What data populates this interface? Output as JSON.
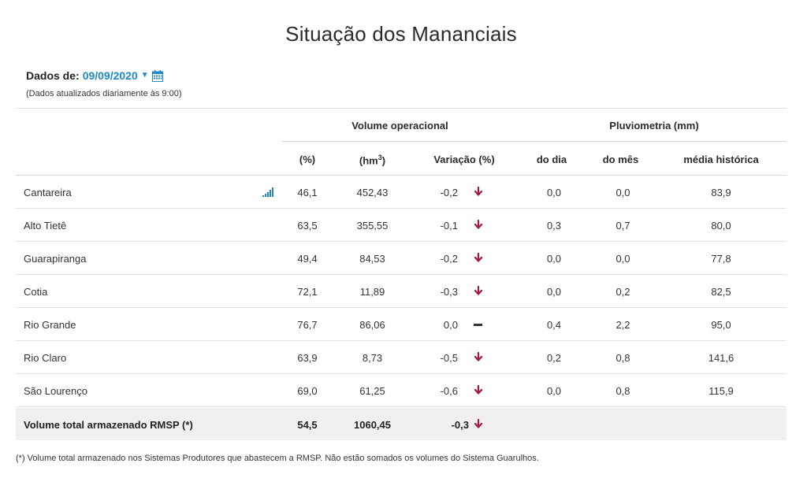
{
  "page": {
    "title": "Situação dos Mananciais"
  },
  "date_selector": {
    "label": "Dados de:",
    "value": "09/09/2020",
    "note": "(Dados atualizados diariamente às 9:00)"
  },
  "table": {
    "group_headers": {
      "volume": "Volume operacional",
      "rain": "Pluviometria (mm)"
    },
    "columns": {
      "pct": "(%)",
      "hm3": "(hm³)",
      "variation": "Variação (%)",
      "day": "do dia",
      "month": "do mês",
      "hist": "média histórica"
    },
    "rows": [
      {
        "name": "Cantareira",
        "pct": "46,1",
        "hm3": "452,43",
        "variation": "-0,2",
        "trend": "down",
        "day": "0,0",
        "month": "0,0",
        "hist": "83,9",
        "chart": true
      },
      {
        "name": "Alto Tietê",
        "pct": "63,5",
        "hm3": "355,55",
        "variation": "-0,1",
        "trend": "down",
        "day": "0,3",
        "month": "0,7",
        "hist": "80,0"
      },
      {
        "name": "Guarapiranga",
        "pct": "49,4",
        "hm3": "84,53",
        "variation": "-0,2",
        "trend": "down",
        "day": "0,0",
        "month": "0,0",
        "hist": "77,8"
      },
      {
        "name": "Cotia",
        "pct": "72,1",
        "hm3": "11,89",
        "variation": "-0,3",
        "trend": "down",
        "day": "0,0",
        "month": "0,2",
        "hist": "82,5"
      },
      {
        "name": "Rio Grande",
        "pct": "76,7",
        "hm3": "86,06",
        "variation": "0,0",
        "trend": "flat",
        "day": "0,4",
        "month": "2,2",
        "hist": "95,0"
      },
      {
        "name": "Rio Claro",
        "pct": "63,9",
        "hm3": "8,73",
        "variation": "-0,5",
        "trend": "down",
        "day": "0,2",
        "month": "0,8",
        "hist": "141,6"
      },
      {
        "name": "São Lourenço",
        "pct": "69,0",
        "hm3": "61,25",
        "variation": "-0,6",
        "trend": "down",
        "day": "0,0",
        "month": "0,8",
        "hist": "115,9"
      }
    ],
    "total": {
      "name": "Volume total armazenado RMSP (*)",
      "pct": "54,5",
      "hm3": "1060,45",
      "variation": "-0,3",
      "trend": "down"
    }
  },
  "footnote": "(*) Volume total armazenado nos Sistemas Produtores que abastecem a RMSP. Não estão somados os volumes do Sistema Guarulhos.",
  "colors": {
    "accent": "#1e88c8",
    "down_arrow": "#a0174a",
    "total_band": "#f0f0f0"
  },
  "icons": {
    "calendar": "calendar-icon",
    "chart": "bar-chart-icon",
    "caret": "caret-down-icon",
    "down": "arrow-down-icon",
    "flat": "dash-icon"
  }
}
